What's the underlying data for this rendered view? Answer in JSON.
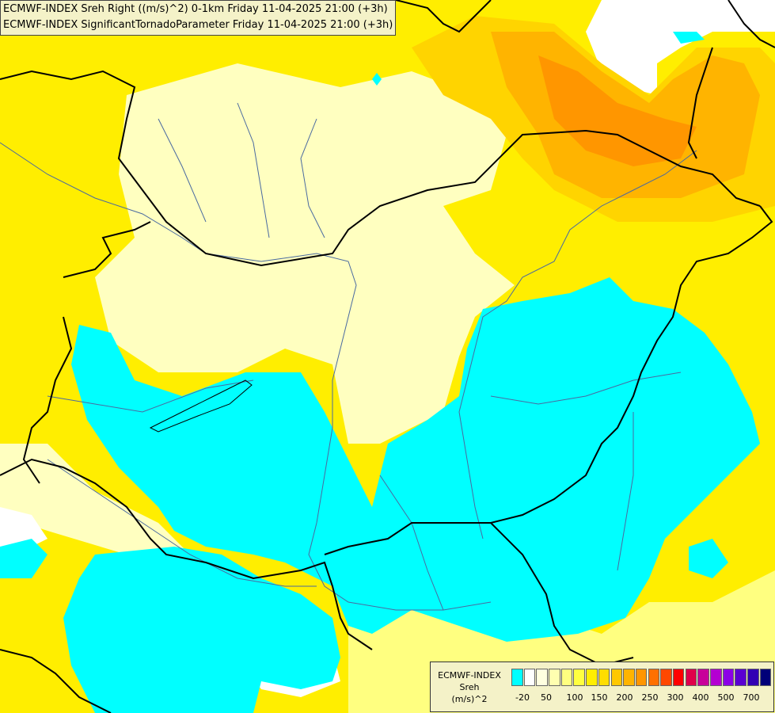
{
  "map": {
    "title_line1": "ECMWF-INDEX Sreh Right ((m/s)^2) 0-1km Friday 11-04-2025 21:00 (+3h)",
    "title_line2": "ECMWF-INDEX SignificantTornadoParameter Friday 11-04-2025 21:00 (+3h)",
    "colors": {
      "cyan": "#00ffff",
      "pale_yellow": "#ffffc0",
      "light_yellow": "#ffff80",
      "yellow": "#ffee00",
      "gold": "#ffd400",
      "orange": "#ffb400",
      "dark_orange": "#ff9600",
      "borders": "#000000",
      "rivers": "#4a6aa0"
    }
  },
  "legend": {
    "name_line1": "ECMWF-INDEX",
    "name_line2": "Sreh",
    "name_line3": "(m/s)^2",
    "colors": [
      "#00ffff",
      "#ffffff",
      "#ffffe0",
      "#ffffb0",
      "#ffff80",
      "#ffff40",
      "#ffee00",
      "#ffdd00",
      "#ffc800",
      "#ffb400",
      "#ff9600",
      "#ff7000",
      "#ff4800",
      "#ff0000",
      "#e0004a",
      "#c8009a",
      "#b400d2",
      "#8c00e6",
      "#5a00d2",
      "#3200b4",
      "#000078"
    ],
    "ticks": [
      "-20",
      "50",
      "100",
      "150",
      "200",
      "250",
      "300",
      "400",
      "500",
      "700"
    ]
  }
}
